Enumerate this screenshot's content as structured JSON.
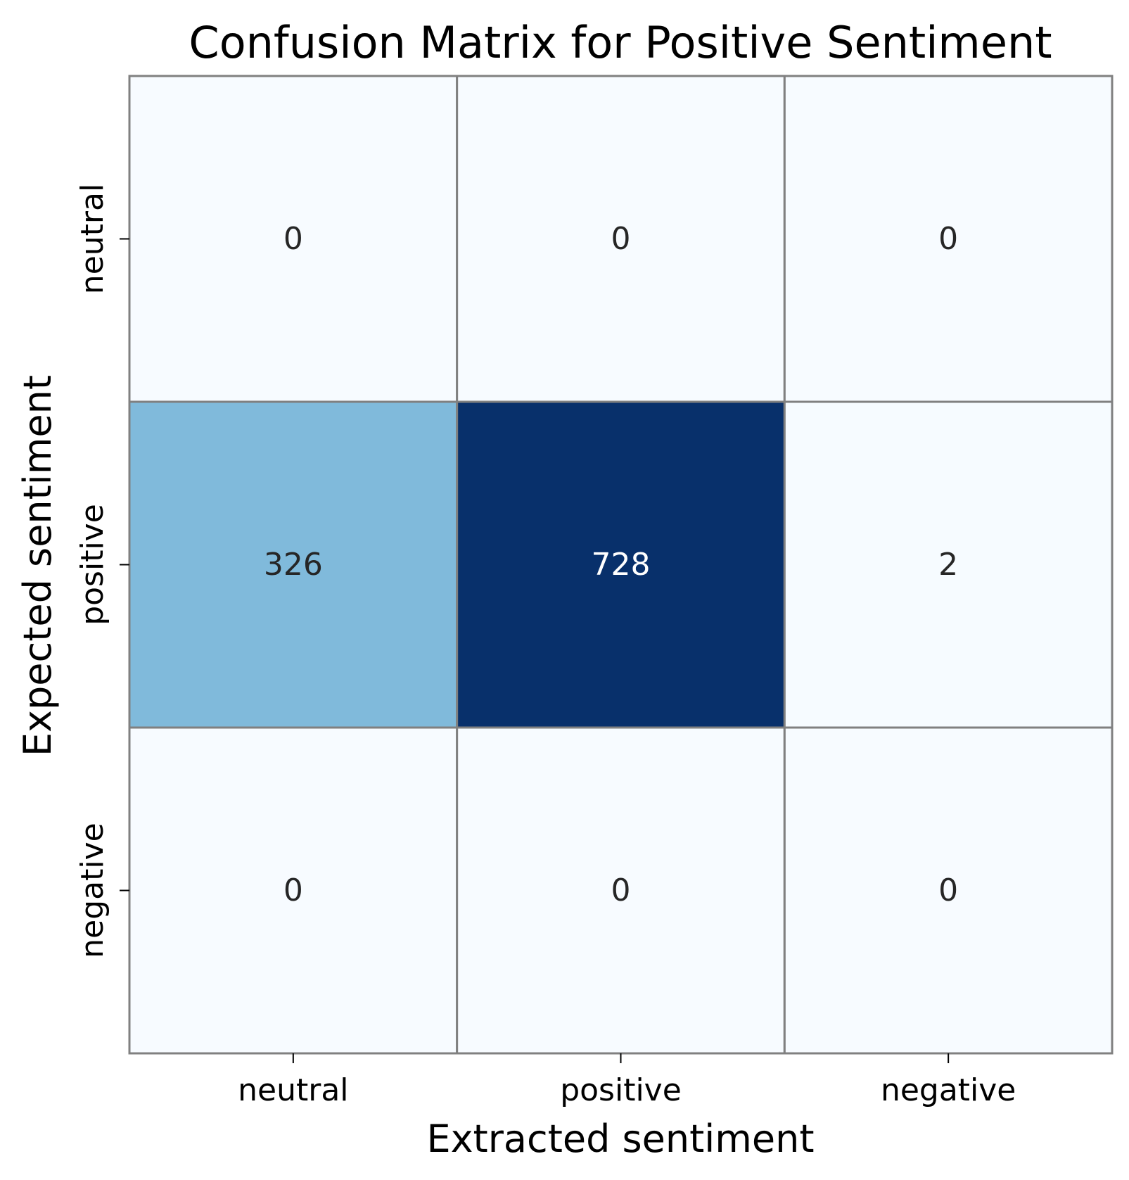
{
  "chart_data": {
    "type": "heatmap",
    "title": "Confusion Matrix for Positive Sentiment",
    "xlabel": "Extracted sentiment",
    "ylabel": "Expected sentiment",
    "x_categories": [
      "neutral",
      "positive",
      "negative"
    ],
    "y_categories": [
      "neutral",
      "positive",
      "negative"
    ],
    "values": [
      [
        0,
        0,
        0
      ],
      [
        326,
        728,
        2
      ],
      [
        0,
        0,
        0
      ]
    ],
    "colormap": "Blues",
    "color_low": "#f7fbff",
    "color_high": "#08306b",
    "cell_border_color": "#808080",
    "colorbar": false
  }
}
